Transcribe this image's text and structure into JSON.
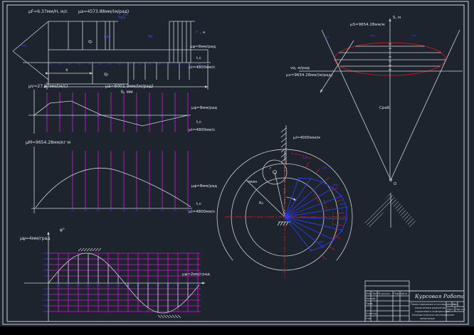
{
  "colors": {
    "background": "#1e242e",
    "line": "#cdd2d8",
    "blue": "#2c3cf0",
    "magenta": "#d814d8",
    "red": "#cf1418"
  },
  "drawing": {
    "force_diagram": {
      "scale_1": "μF=6.37мм/Н, м/с",
      "scale_2": "μa=4573.88мм/(м/рад)",
      "q1": "q₁",
      "q2": "q₂",
      "x_dim": "x",
      "b_dim": "b, мм",
      "f_blue": "F",
      "f_unit": ", н",
      "fvd": "Fвд",
      "fvs": "Fвс",
      "fv": "Fв"
    },
    "plot_scales": {
      "mu_phi": "μφ=8мм/рад",
      "t_axis": "t,c",
      "mu_t": "μt=4800мм/с"
    },
    "velocity_plot": {
      "scale_1": "μv=27.57мм/(м/с)",
      "scale_2": "μa=6001.9мм/(м/рад)"
    },
    "moment_plot": {
      "scale": "μM=9654.28мм/кг·м"
    },
    "angle_plot": {
      "axis": "φ°",
      "scale_left": "μψ=4мм/град",
      "scale_right": "μφ=2мм/град"
    },
    "cam_diagram": {
      "scale": "μl=4000мм/м",
      "r0": "R₀",
      "rmin": "rмин",
      "r": "r"
    },
    "sv_diagram": {
      "axis_s": "S, м",
      "scale_s": "μS=9654.28мм/м",
      "axis_v": "vq, м/рад",
      "scale_v": "μv=9654.28мм/(м/рад)",
      "o": "O",
      "c_rab": "Сраб"
    },
    "titleblock": {
      "title": "Курсовая Работа",
      "line1": "Проектирование и исследование",
      "line2": "механизмов движения",
      "line3": "поршневого компрессора",
      "line4": "Кинематическое исследование",
      "line5": "механизма",
      "lit": "Лит.",
      "list": "Лист",
      "listov": "Листов",
      "izm": "Изм.",
      "list2": "Лист",
      "ndok": "№ докум.",
      "podp": "Подп.",
      "data": "Дата",
      "razrab": "Разраб.",
      "prov": "Пров.",
      "nkontr": "Н.контр.",
      "utv": "Утв."
    }
  }
}
